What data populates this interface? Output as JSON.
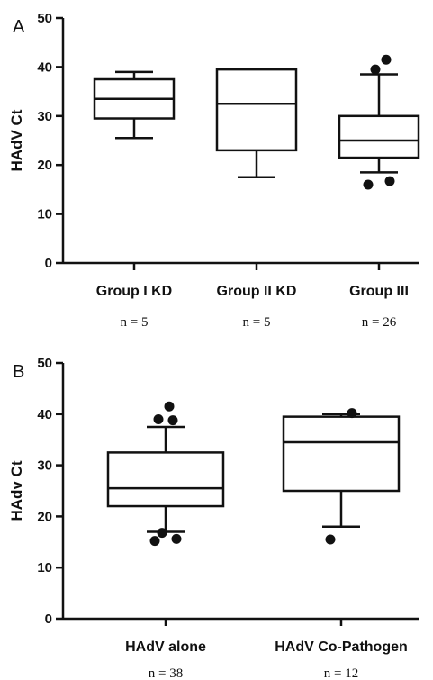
{
  "chart_data": [
    {
      "type": "box",
      "panel": "A",
      "ylabel": "HAdV Ct",
      "ylim": [
        0,
        50
      ],
      "yticks": [
        0,
        10,
        20,
        30,
        40,
        50
      ],
      "categories": [
        "Group I KD",
        "Group II KD",
        "Group III"
      ],
      "n_labels": [
        "n = 5",
        "n = 5",
        "n = 26"
      ],
      "boxes": [
        {
          "whisker_low": 25.5,
          "q1": 29.5,
          "median": 33.5,
          "q3": 37.5,
          "whisker_high": 39.0,
          "outliers": []
        },
        {
          "whisker_low": 17.5,
          "q1": 23.0,
          "median": 32.5,
          "q3": 39.5,
          "whisker_high": 39.5,
          "outliers": []
        },
        {
          "whisker_low": 18.5,
          "q1": 21.5,
          "median": 25.0,
          "q3": 30.0,
          "whisker_high": 38.5,
          "outliers": [
            16.0,
            16.7,
            39.5,
            41.5
          ]
        }
      ]
    },
    {
      "type": "box",
      "panel": "B",
      "ylabel": "HAdv Ct",
      "ylim": [
        0,
        50
      ],
      "yticks": [
        0,
        10,
        20,
        30,
        40,
        50
      ],
      "categories": [
        "HAdV alone",
        "HAdV Co-Pathogen"
      ],
      "n_labels": [
        "n = 38",
        "n = 12"
      ],
      "boxes": [
        {
          "whisker_low": 17.0,
          "q1": 22.0,
          "median": 25.5,
          "q3": 32.5,
          "whisker_high": 37.5,
          "outliers": [
            15.2,
            15.6,
            16.8,
            38.8,
            39.0,
            41.5
          ]
        },
        {
          "whisker_low": 18.0,
          "q1": 25.0,
          "median": 34.5,
          "q3": 39.5,
          "whisker_high": 40.0,
          "outliers": [
            15.5,
            40.2
          ]
        }
      ]
    }
  ]
}
